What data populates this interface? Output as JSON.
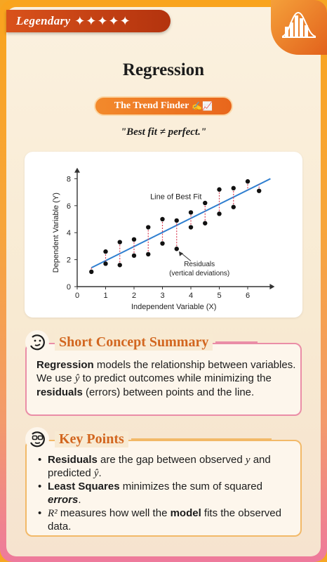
{
  "badge": {
    "label": "Legendary",
    "stars": "✦✦✦✦✦"
  },
  "title": "Regression",
  "pill": {
    "label": "The Trend Finder",
    "icon": "✍📈"
  },
  "quote": "\"Best fit ≠ perfect.\"",
  "chart_data": {
    "type": "scatter",
    "xlabel": "Independent Variable (X)",
    "ylabel": "Dependent Variable (Y)",
    "xlim": [
      0,
      6.8
    ],
    "ylim": [
      0,
      8.5
    ],
    "x_ticks": [
      "0",
      "1",
      "2",
      "3",
      "4",
      "5",
      "6"
    ],
    "y_ticks": [
      "0",
      "2",
      "4",
      "6",
      "8"
    ],
    "points": [
      [
        0.5,
        1.1
      ],
      [
        1.0,
        1.7
      ],
      [
        1.0,
        2.6
      ],
      [
        1.5,
        1.6
      ],
      [
        1.5,
        3.3
      ],
      [
        2.0,
        2.3
      ],
      [
        2.0,
        3.5
      ],
      [
        2.5,
        2.4
      ],
      [
        2.5,
        4.4
      ],
      [
        3.0,
        3.2
      ],
      [
        3.0,
        5.0
      ],
      [
        3.5,
        2.8
      ],
      [
        3.5,
        4.9
      ],
      [
        4.0,
        4.4
      ],
      [
        4.0,
        5.5
      ],
      [
        4.5,
        4.7
      ],
      [
        4.5,
        6.2
      ],
      [
        5.0,
        5.4
      ],
      [
        5.0,
        7.2
      ],
      [
        5.5,
        5.9
      ],
      [
        5.5,
        7.3
      ],
      [
        6.0,
        7.8
      ],
      [
        6.4,
        7.1
      ]
    ],
    "fit_line": {
      "x": [
        0.5,
        6.8
      ],
      "y": [
        1.4,
        8.0
      ]
    },
    "annotations": {
      "fit": "Line of Best Fit",
      "residuals_1": "Residuals",
      "residuals_2": "(vertical deviations)"
    },
    "colors": {
      "line": "#2f7fd0",
      "residual": "#d94057",
      "point": "#111111"
    }
  },
  "summary": {
    "heading": "Short Concept Summary",
    "term": "Regression",
    "t1": " models the relationship between variables. We use ",
    "yhat": "ŷ",
    "t2": " to predict outcomes while minimizing the ",
    "residuals": "residuals",
    "t3": " (errors) between points and the line."
  },
  "keypoints": {
    "heading": "Key Points",
    "p1_term": "Residuals",
    "p1_a": " are the gap between observed ",
    "p1_y": "y",
    "p1_b": " and predicted ",
    "p1_yhat": "ŷ",
    "p1_c": ".",
    "p2_term": "Least Squares",
    "p2_a": " minimizes the sum of squared ",
    "p2_errors": "errors",
    "p2_c": ".",
    "p3_r2": "R²",
    "p3_a": " measures how well the ",
    "p3_model": "model",
    "p3_b": " fits the observed data."
  },
  "colors": {
    "accent": "#d2661f",
    "pink": "#ea8da7",
    "orange": "#f2b968"
  }
}
